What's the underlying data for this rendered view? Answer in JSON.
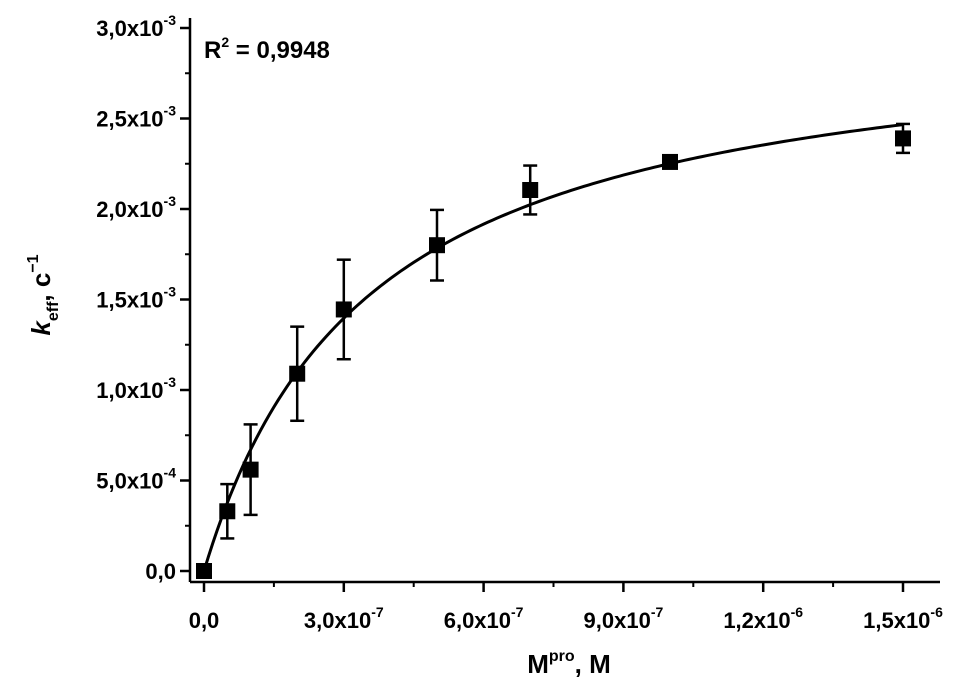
{
  "chart_data": {
    "type": "scatter",
    "x_ticks": [
      {
        "value": 0,
        "mant": "0,0",
        "exp": ""
      },
      {
        "value": 3e-07,
        "mant": "3,0x10",
        "exp": "-7"
      },
      {
        "value": 6e-07,
        "mant": "6,0x10",
        "exp": "-7"
      },
      {
        "value": 9e-07,
        "mant": "9,0x10",
        "exp": "-7"
      },
      {
        "value": 1.2e-06,
        "mant": "1,2x10",
        "exp": "-6"
      },
      {
        "value": 1.5e-06,
        "mant": "1,5x10",
        "exp": "-6"
      }
    ],
    "y_ticks": [
      {
        "value": 0,
        "mant": "0,0",
        "exp": ""
      },
      {
        "value": 0.0005,
        "mant": "5,0x10",
        "exp": "-4"
      },
      {
        "value": 0.001,
        "mant": "1,0x10",
        "exp": "-3"
      },
      {
        "value": 0.0015,
        "mant": "1,5x10",
        "exp": "-3"
      },
      {
        "value": 0.002,
        "mant": "2,0x10",
        "exp": "-3"
      },
      {
        "value": 0.0025,
        "mant": "2,5x10",
        "exp": "-3"
      },
      {
        "value": 0.003,
        "mant": "3,0x10",
        "exp": "-3"
      }
    ],
    "xlim": [
      -1.5e-08,
      1.62e-06
    ],
    "ylim": [
      -2e-05,
      0.003
    ],
    "xlabel": {
      "base": "M",
      "sup": "pro",
      "tail": ", M"
    },
    "ylabel": {
      "base": "k",
      "sub": "eff",
      "tail": ", c",
      "sup": "−1"
    },
    "points": [
      {
        "x": 0,
        "y": 0,
        "err": 0
      },
      {
        "x": 5e-08,
        "y": 0.00033,
        "err": 0.00015
      },
      {
        "x": 1e-07,
        "y": 0.00056,
        "err": 0.00025
      },
      {
        "x": 2e-07,
        "y": 0.00109,
        "err": 0.00026
      },
      {
        "x": 3e-07,
        "y": 0.001445,
        "err": 0.000275
      },
      {
        "x": 5e-07,
        "y": 0.0018,
        "err": 0.000195
      },
      {
        "x": 7e-07,
        "y": 0.002105,
        "err": 0.000135
      },
      {
        "x": 1e-06,
        "y": 0.00226,
        "err": 3.5e-05
      },
      {
        "x": 1.5e-06,
        "y": 0.00239,
        "err": 8e-05
      }
    ],
    "fit": {
      "model": "hyperbolic",
      "vmax": 0.00305,
      "km": 3.55e-07
    },
    "annotation": {
      "base": "R",
      "sup": "2",
      "tail": " = 0,9948"
    },
    "grid": false,
    "legend": "none"
  }
}
